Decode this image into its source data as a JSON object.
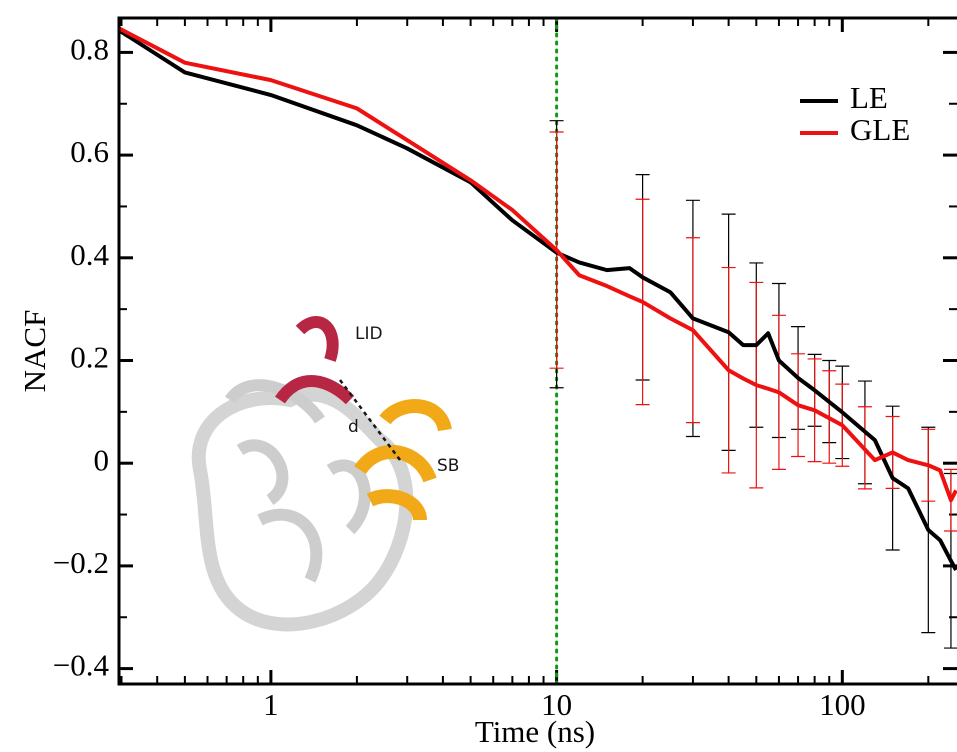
{
  "chart_data": {
    "type": "line",
    "xlabel": "Time (ns)",
    "ylabel": "NACF",
    "log_x": true,
    "xlim": [
      0.294,
      252
    ],
    "ylim": [
      -0.43,
      0.867
    ],
    "xticks": [
      1,
      10,
      100
    ],
    "xminorticks": [
      0.3,
      0.4,
      0.5,
      0.6,
      0.7,
      0.8,
      0.9,
      2,
      3,
      4,
      5,
      6,
      7,
      8,
      9,
      20,
      30,
      40,
      50,
      60,
      70,
      80,
      90,
      200
    ],
    "yticks": [
      {
        "value": -0.4,
        "label": "−0.4"
      },
      {
        "value": -0.2,
        "label": "−0.2"
      },
      0,
      0.2,
      0.4,
      0.6,
      0.8
    ],
    "yminorticks": [
      -0.3,
      -0.1,
      0.1,
      0.3,
      0.5,
      0.7
    ],
    "vline": {
      "x": 10,
      "color": "#119911"
    },
    "legend": "upper right",
    "annotations": [
      "LID",
      "d",
      "SB"
    ],
    "x": [
      0.294,
      0.5,
      1,
      2,
      3,
      5,
      7,
      10,
      12,
      15,
      18,
      20,
      25,
      30,
      40,
      45,
      50,
      55,
      60,
      70,
      80,
      100,
      130,
      150,
      170,
      200,
      220,
      240,
      250
    ],
    "series": [
      {
        "name": "LE",
        "color": "#000000",
        "values": [
          0.843,
          0.761,
          0.717,
          0.658,
          0.613,
          0.547,
          0.473,
          0.41,
          0.391,
          0.376,
          0.38,
          0.362,
          0.333,
          0.282,
          0.255,
          0.23,
          0.23,
          0.253,
          0.2,
          0.166,
          0.142,
          0.099,
          0.045,
          -0.029,
          -0.049,
          -0.13,
          -0.15,
          -0.19,
          -0.208
        ],
        "error_bars": {
          "x": [
            10,
            20,
            30,
            40,
            50,
            60,
            70,
            80,
            90,
            100,
            120,
            150,
            200,
            240
          ],
          "values": [
            0.407,
            0.362,
            0.282,
            0.255,
            0.23,
            0.2,
            0.166,
            0.142,
            0.12,
            0.099,
            0.06,
            -0.029,
            -0.13,
            -0.19
          ],
          "errors": [
            0.26,
            0.2,
            0.23,
            0.23,
            0.16,
            0.15,
            0.1,
            0.07,
            0.08,
            0.09,
            0.1,
            0.14,
            0.2,
            0.17
          ]
        }
      },
      {
        "name": "GLE",
        "color": "#ee1111",
        "values": [
          0.847,
          0.78,
          0.746,
          0.691,
          0.629,
          0.551,
          0.493,
          0.415,
          0.366,
          0.345,
          0.325,
          0.314,
          0.282,
          0.259,
          0.181,
          0.165,
          0.152,
          0.145,
          0.138,
          0.113,
          0.103,
          0.074,
          0.006,
          0.021,
          0.006,
          -0.004,
          -0.014,
          -0.072,
          -0.053
        ],
        "error_bars": {
          "x": [
            10,
            20,
            30,
            40,
            50,
            60,
            70,
            80,
            90,
            100,
            120,
            150,
            200,
            240
          ],
          "values": [
            0.415,
            0.314,
            0.259,
            0.181,
            0.152,
            0.138,
            0.113,
            0.103,
            0.09,
            0.074,
            0.03,
            0.021,
            -0.004,
            -0.072
          ],
          "errors": [
            0.23,
            0.2,
            0.18,
            0.2,
            0.2,
            0.15,
            0.1,
            0.1,
            0.09,
            0.08,
            0.08,
            0.07,
            0.07,
            0.06
          ]
        }
      }
    ]
  }
}
